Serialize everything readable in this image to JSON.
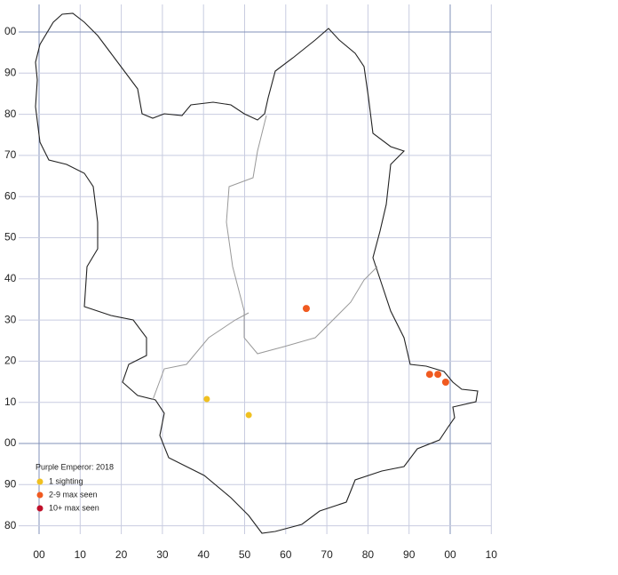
{
  "chart_data": {
    "type": "scatter",
    "title": "Purple Emperor:  2018",
    "xlim": [
      -5,
      110
    ],
    "ylim": [
      -20,
      107
    ],
    "xticks": [
      {
        "value": 0,
        "label": "00"
      },
      10,
      20,
      30,
      40,
      50,
      60,
      70,
      80,
      90,
      {
        "value": 100,
        "label": "00"
      },
      {
        "value": 110,
        "label": "10"
      }
    ],
    "yticks": [
      {
        "value": -20,
        "label": "80"
      },
      {
        "value": -10,
        "label": "90"
      },
      {
        "value": 0,
        "label": "00"
      },
      10,
      20,
      30,
      40,
      50,
      60,
      70,
      80,
      90,
      {
        "value": 100,
        "label": "00"
      }
    ],
    "grid": true,
    "series": [
      {
        "name": "1 sighting",
        "color": "#f0c020",
        "x": [
          40.8,
          51
        ],
        "values": [
          10.8,
          6.9
        ]
      },
      {
        "name": "2-9 max seen",
        "color": "#f05a20",
        "x": [
          65,
          95,
          97,
          98.9
        ],
        "values": [
          32.8,
          16.8,
          16.8,
          14.9
        ]
      },
      {
        "name": "10+ max seen",
        "color": "#c0102a",
        "x": [],
        "values": []
      }
    ]
  }
}
